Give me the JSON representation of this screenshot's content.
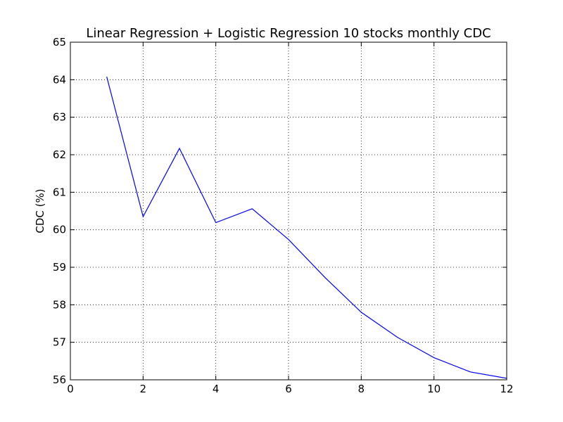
{
  "chart_data": {
    "type": "line",
    "title": "Linear Regression + Logistic Regression 10 stocks monthly CDC",
    "xlabel": "",
    "ylabel": "CDC (%)",
    "xlim": [
      0,
      12
    ],
    "ylim": [
      56,
      65
    ],
    "xticks": [
      "0",
      "2",
      "4",
      "6",
      "8",
      "10",
      "12"
    ],
    "yticks": [
      "56",
      "57",
      "58",
      "59",
      "60",
      "61",
      "62",
      "63",
      "64",
      "65"
    ],
    "grid": true,
    "legend": "none",
    "series": [
      {
        "color": "#0000ff",
        "x": [
          1,
          2,
          3,
          4,
          5,
          6,
          7,
          8,
          9,
          10,
          11,
          12
        ],
        "y": [
          64.08,
          60.35,
          62.17,
          60.19,
          60.56,
          59.74,
          58.73,
          57.8,
          57.13,
          56.59,
          56.21,
          56.04
        ]
      }
    ]
  }
}
